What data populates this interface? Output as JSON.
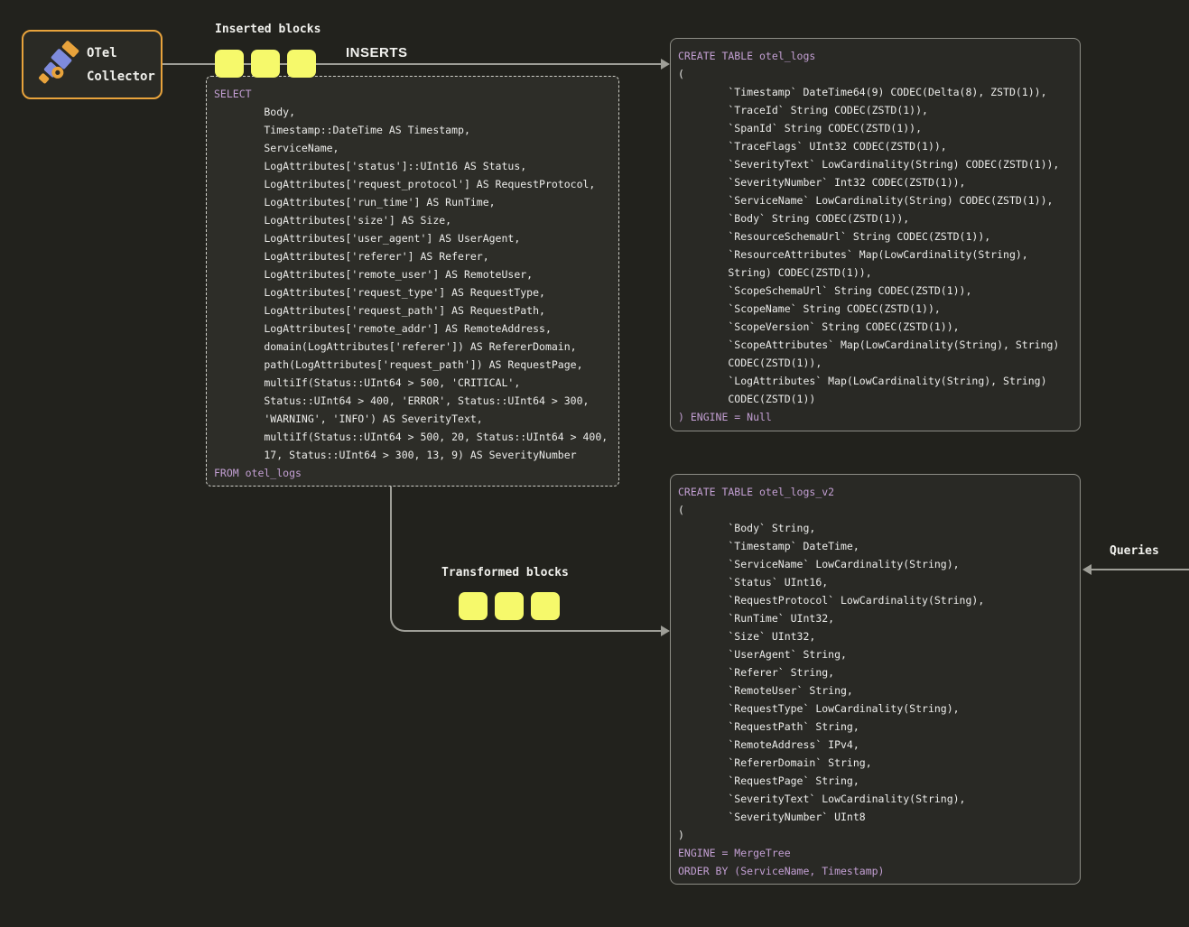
{
  "colors": {
    "accent_yellow": "#f6f96b",
    "accent_amber": "#e8a33c",
    "accent_blue": "#7e8bdd",
    "keyword_purple": "#c39fd3",
    "line_gray": "#9e9e97"
  },
  "otel_collector": {
    "line1": "OTel",
    "line2": "Collector"
  },
  "labels": {
    "inserted_blocks": "Inserted blocks",
    "inserts": "INSERTS",
    "transformed_blocks": "Transformed blocks",
    "queries": "Queries"
  },
  "select_block": {
    "lines": [
      {
        "s": "k",
        "t": "SELECT"
      },
      {
        "s": "p",
        "t": "        Body,"
      },
      {
        "s": "p",
        "t": "        Timestamp::DateTime AS Timestamp,"
      },
      {
        "s": "p",
        "t": "        ServiceName,"
      },
      {
        "s": "p",
        "t": "        LogAttributes['status']::UInt16 AS Status,"
      },
      {
        "s": "p",
        "t": "        LogAttributes['request_protocol'] AS RequestProtocol,"
      },
      {
        "s": "p",
        "t": "        LogAttributes['run_time'] AS RunTime,"
      },
      {
        "s": "p",
        "t": "        LogAttributes['size'] AS Size,"
      },
      {
        "s": "p",
        "t": "        LogAttributes['user_agent'] AS UserAgent,"
      },
      {
        "s": "p",
        "t": "        LogAttributes['referer'] AS Referer,"
      },
      {
        "s": "p",
        "t": "        LogAttributes['remote_user'] AS RemoteUser,"
      },
      {
        "s": "p",
        "t": "        LogAttributes['request_type'] AS RequestType,"
      },
      {
        "s": "p",
        "t": "        LogAttributes['request_path'] AS RequestPath,"
      },
      {
        "s": "p",
        "t": "        LogAttributes['remote_addr'] AS RemoteAddress,"
      },
      {
        "s": "p",
        "t": "        domain(LogAttributes['referer']) AS RefererDomain,"
      },
      {
        "s": "p",
        "t": "        path(LogAttributes['request_path']) AS RequestPage,"
      },
      {
        "s": "p",
        "t": "        multiIf(Status::UInt64 > 500, 'CRITICAL',"
      },
      {
        "s": "p",
        "t": "        Status::UInt64 > 400, 'ERROR', Status::UInt64 > 300,"
      },
      {
        "s": "p",
        "t": "        'WARNING', 'INFO') AS SeverityText,"
      },
      {
        "s": "p",
        "t": "        multiIf(Status::UInt64 > 500, 20, Status::UInt64 > 400,"
      },
      {
        "s": "p",
        "t": "        17, Status::UInt64 > 300, 13, 9) AS SeverityNumber"
      },
      {
        "s": "k",
        "t": "FROM otel_logs"
      }
    ]
  },
  "create_table_otel_logs": {
    "lines": [
      {
        "s": "k",
        "t": "CREATE TABLE otel_logs"
      },
      {
        "s": "p",
        "t": "("
      },
      {
        "s": "p",
        "t": "        `Timestamp` DateTime64(9) CODEC(Delta(8), ZSTD(1)),"
      },
      {
        "s": "p",
        "t": "        `TraceId` String CODEC(ZSTD(1)),"
      },
      {
        "s": "p",
        "t": "        `SpanId` String CODEC(ZSTD(1)),"
      },
      {
        "s": "p",
        "t": "        `TraceFlags` UInt32 CODEC(ZSTD(1)),"
      },
      {
        "s": "p",
        "t": "        `SeverityText` LowCardinality(String) CODEC(ZSTD(1)),"
      },
      {
        "s": "p",
        "t": "        `SeverityNumber` Int32 CODEC(ZSTD(1)),"
      },
      {
        "s": "p",
        "t": "        `ServiceName` LowCardinality(String) CODEC(ZSTD(1)),"
      },
      {
        "s": "p",
        "t": "        `Body` String CODEC(ZSTD(1)),"
      },
      {
        "s": "p",
        "t": "        `ResourceSchemaUrl` String CODEC(ZSTD(1)),"
      },
      {
        "s": "p",
        "t": "        `ResourceAttributes` Map(LowCardinality(String),"
      },
      {
        "s": "p",
        "t": "        String) CODEC(ZSTD(1)),"
      },
      {
        "s": "p",
        "t": "        `ScopeSchemaUrl` String CODEC(ZSTD(1)),"
      },
      {
        "s": "p",
        "t": "        `ScopeName` String CODEC(ZSTD(1)),"
      },
      {
        "s": "p",
        "t": "        `ScopeVersion` String CODEC(ZSTD(1)),"
      },
      {
        "s": "p",
        "t": "        `ScopeAttributes` Map(LowCardinality(String), String)"
      },
      {
        "s": "p",
        "t": "        CODEC(ZSTD(1)),"
      },
      {
        "s": "p",
        "t": "        `LogAttributes` Map(LowCardinality(String), String)"
      },
      {
        "s": "p",
        "t": "        CODEC(ZSTD(1))"
      },
      {
        "s": "k",
        "t": ") ENGINE = Null"
      }
    ]
  },
  "create_table_otel_logs_v2": {
    "lines": [
      {
        "s": "k",
        "t": "CREATE TABLE otel_logs_v2"
      },
      {
        "s": "p",
        "t": "("
      },
      {
        "s": "p",
        "t": "        `Body` String,"
      },
      {
        "s": "p",
        "t": "        `Timestamp` DateTime,"
      },
      {
        "s": "p",
        "t": "        `ServiceName` LowCardinality(String),"
      },
      {
        "s": "p",
        "t": "        `Status` UInt16,"
      },
      {
        "s": "p",
        "t": "        `RequestProtocol` LowCardinality(String),"
      },
      {
        "s": "p",
        "t": "        `RunTime` UInt32,"
      },
      {
        "s": "p",
        "t": "        `Size` UInt32,"
      },
      {
        "s": "p",
        "t": "        `UserAgent` String,"
      },
      {
        "s": "p",
        "t": "        `Referer` String,"
      },
      {
        "s": "p",
        "t": "        `RemoteUser` String,"
      },
      {
        "s": "p",
        "t": "        `RequestType` LowCardinality(String),"
      },
      {
        "s": "p",
        "t": "        `RequestPath` String,"
      },
      {
        "s": "p",
        "t": "        `RemoteAddress` IPv4,"
      },
      {
        "s": "p",
        "t": "        `RefererDomain` String,"
      },
      {
        "s": "p",
        "t": "        `RequestPage` String,"
      },
      {
        "s": "p",
        "t": "        `SeverityText` LowCardinality(String),"
      },
      {
        "s": "p",
        "t": "        `SeverityNumber` UInt8"
      },
      {
        "s": "p",
        "t": ")"
      },
      {
        "s": "k",
        "t": "ENGINE = MergeTree"
      },
      {
        "s": "k",
        "t": "ORDER BY (ServiceName, Timestamp)"
      }
    ]
  }
}
